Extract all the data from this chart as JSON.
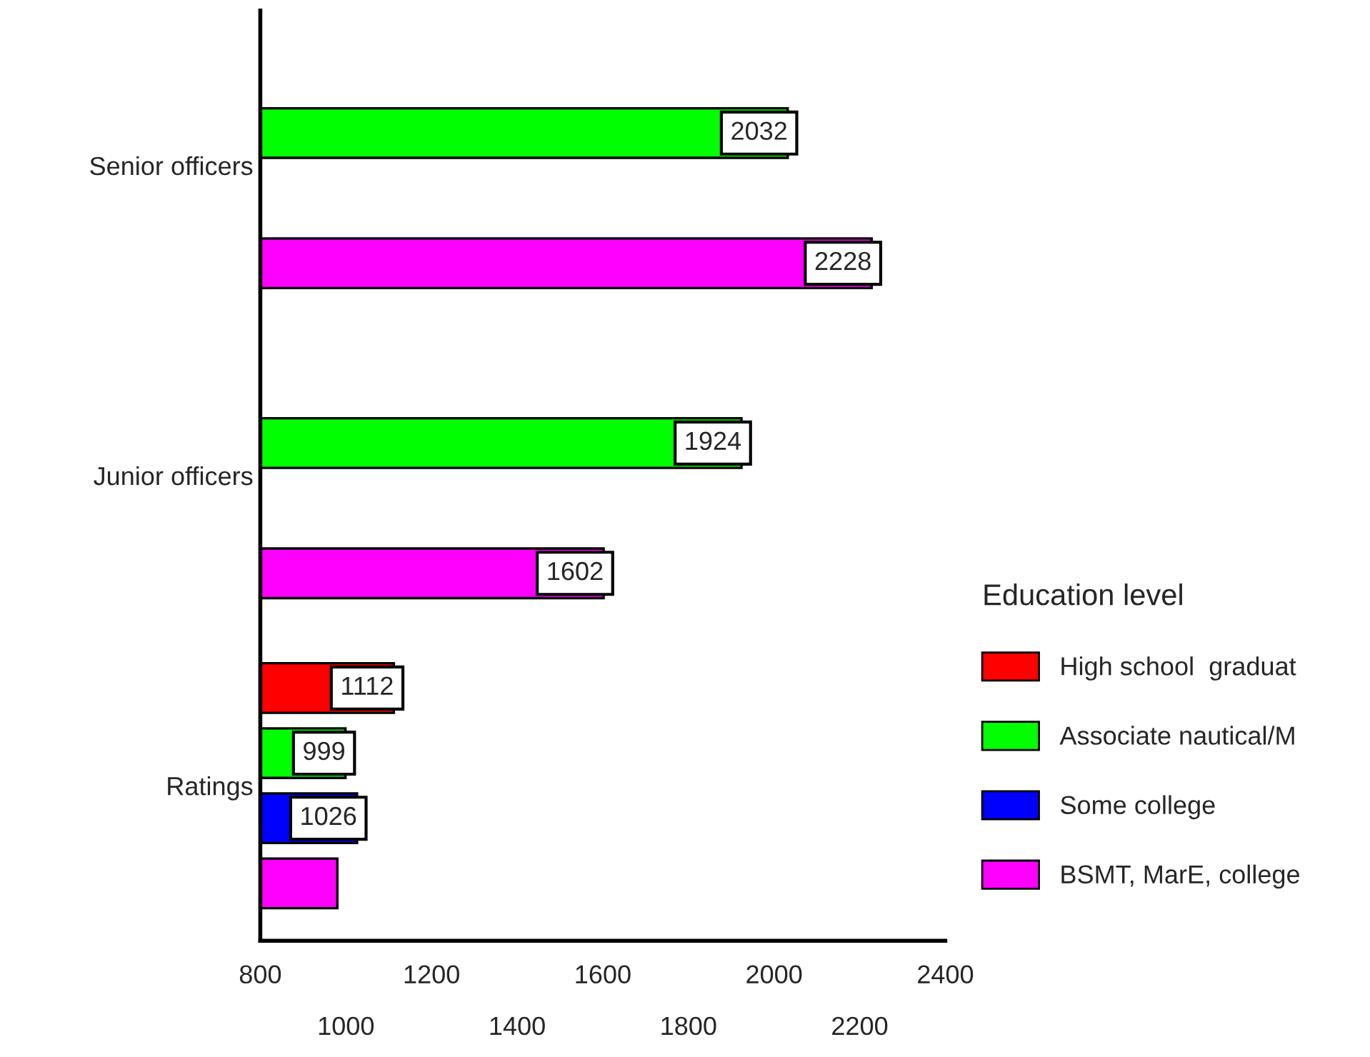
{
  "chart_data": {
    "type": "bar",
    "orientation": "horizontal",
    "categories": [
      "Senior officers",
      "Junior officers",
      "Ratings"
    ],
    "series": [
      {
        "name": "High school  graduat",
        "color": "#ff0000",
        "values": [
          null,
          null,
          1112
        ],
        "value_labels": [
          null,
          null,
          "1112"
        ]
      },
      {
        "name": "Associate nautical/M",
        "color": "#00ff00",
        "values": [
          2032,
          1924,
          999
        ],
        "value_labels": [
          "2032",
          "1924",
          "999"
        ]
      },
      {
        "name": "Some college",
        "color": "#0000ff",
        "values": [
          null,
          null,
          1026
        ],
        "value_labels": [
          null,
          null,
          "1026"
        ]
      },
      {
        "name": "BSMT, MarE, college",
        "color": "#ff00ff",
        "values": [
          2228,
          1602,
          980
        ],
        "value_labels": [
          "2228",
          "1602",
          null
        ]
      }
    ],
    "legend_title": "Education level",
    "legend": "right",
    "xlim": [
      800,
      2400
    ],
    "xticks": [
      800,
      1200,
      1600,
      2000,
      2400
    ],
    "x2lim": [
      800,
      2400
    ],
    "x2ticks": [
      1000,
      1400,
      1800,
      2200
    ],
    "grid": false
  }
}
